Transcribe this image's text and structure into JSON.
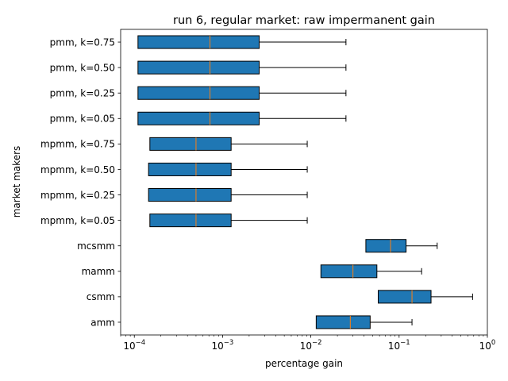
{
  "chart_data": {
    "type": "boxplot",
    "orientation": "horizontal",
    "title": "run 6, regular market: raw impermanent gain",
    "xlabel": "percentage gain",
    "ylabel": "market makers",
    "x_scale": "log",
    "xlim": [
      7e-05,
      1.0
    ],
    "x_ticks": [
      {
        "value": 0.0001,
        "base": "10",
        "exp": "−4"
      },
      {
        "value": 0.001,
        "base": "10",
        "exp": "−3"
      },
      {
        "value": 0.01,
        "base": "10",
        "exp": "−2"
      },
      {
        "value": 0.1,
        "base": "10",
        "exp": "−1"
      },
      {
        "value": 1,
        "base": "10",
        "exp": "0"
      }
    ],
    "colors": {
      "box_fill": "#1f77b4",
      "median": "#ff7f0e",
      "line": "#000000"
    },
    "categories": [
      "pmm, k=0.75",
      "pmm, k=0.50",
      "pmm, k=0.25",
      "pmm, k=0.05",
      "mpmm, k=0.75",
      "mpmm, k=0.50",
      "mpmm, k=0.25",
      "mpmm, k=0.05",
      "mcsmm",
      "mamm",
      "csmm",
      "amm"
    ],
    "boxes": [
      {
        "label": "pmm, k=0.75",
        "whislo": 0.00011,
        "q1": 0.00011,
        "median": 0.00072,
        "q3": 0.0026,
        "whishi": 0.025
      },
      {
        "label": "pmm, k=0.50",
        "whislo": 0.00011,
        "q1": 0.00011,
        "median": 0.00072,
        "q3": 0.0026,
        "whishi": 0.025
      },
      {
        "label": "pmm, k=0.25",
        "whislo": 0.00011,
        "q1": 0.00011,
        "median": 0.00072,
        "q3": 0.0026,
        "whishi": 0.025
      },
      {
        "label": "pmm, k=0.05",
        "whislo": 0.00011,
        "q1": 0.00011,
        "median": 0.00072,
        "q3": 0.0026,
        "whishi": 0.025
      },
      {
        "label": "mpmm, k=0.75",
        "whislo": 0.00015,
        "q1": 0.00015,
        "median": 0.0005,
        "q3": 0.00125,
        "whishi": 0.0091
      },
      {
        "label": "mpmm, k=0.50",
        "whislo": 0.000145,
        "q1": 0.000145,
        "median": 0.0005,
        "q3": 0.00125,
        "whishi": 0.0091
      },
      {
        "label": "mpmm, k=0.25",
        "whislo": 0.000145,
        "q1": 0.000145,
        "median": 0.0005,
        "q3": 0.00125,
        "whishi": 0.0091
      },
      {
        "label": "mpmm, k=0.05",
        "whislo": 0.00015,
        "q1": 0.00015,
        "median": 0.0005,
        "q3": 0.00125,
        "whishi": 0.0091
      },
      {
        "label": "mcsmm",
        "whislo": 0.042,
        "q1": 0.042,
        "median": 0.08,
        "q3": 0.12,
        "whishi": 0.27
      },
      {
        "label": "mamm",
        "whislo": 0.013,
        "q1": 0.013,
        "median": 0.03,
        "q3": 0.056,
        "whishi": 0.18
      },
      {
        "label": "csmm",
        "whislo": 0.058,
        "q1": 0.058,
        "median": 0.14,
        "q3": 0.23,
        "whishi": 0.68
      },
      {
        "label": "amm",
        "whislo": 0.0115,
        "q1": 0.0115,
        "median": 0.028,
        "q3": 0.047,
        "whishi": 0.14
      }
    ]
  }
}
